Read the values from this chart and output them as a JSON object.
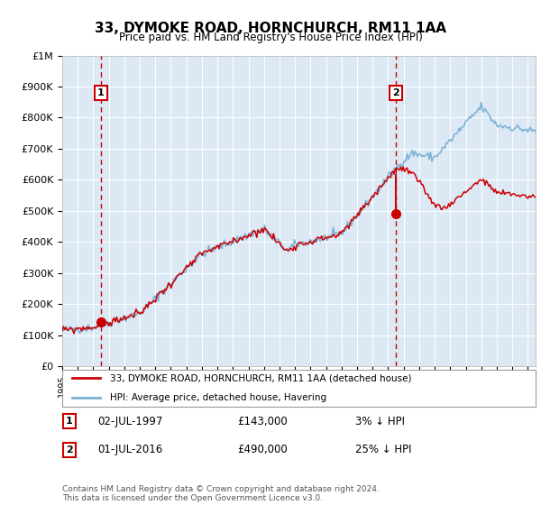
{
  "title": "33, DYMOKE ROAD, HORNCHURCH, RM11 1AA",
  "subtitle": "Price paid vs. HM Land Registry's House Price Index (HPI)",
  "plot_bg_color": "#dce9f5",
  "hpi_color": "#7ab0d4",
  "price_color": "#cc0000",
  "transaction1_date": 1997.5,
  "transaction1_price": 143000,
  "transaction2_date": 2016.5,
  "transaction2_price": 490000,
  "ylim": [
    0,
    1000000
  ],
  "xlim": [
    1995,
    2025.5
  ],
  "yticks": [
    0,
    100000,
    200000,
    300000,
    400000,
    500000,
    600000,
    700000,
    800000,
    900000,
    1000000
  ],
  "ytick_labels": [
    "£0",
    "£100K",
    "£200K",
    "£300K",
    "£400K",
    "£500K",
    "£600K",
    "£700K",
    "£800K",
    "£900K",
    "£1M"
  ],
  "legend_label1": "33, DYMOKE ROAD, HORNCHURCH, RM11 1AA (detached house)",
  "legend_label2": "HPI: Average price, detached house, Havering",
  "note1_date": "02-JUL-1997",
  "note1_price": "£143,000",
  "note1_hpi": "3% ↓ HPI",
  "note2_date": "01-JUL-2016",
  "note2_price": "£490,000",
  "note2_hpi": "25% ↓ HPI",
  "footer": "Contains HM Land Registry data © Crown copyright and database right 2024.\nThis data is licensed under the Open Government Licence v3.0."
}
